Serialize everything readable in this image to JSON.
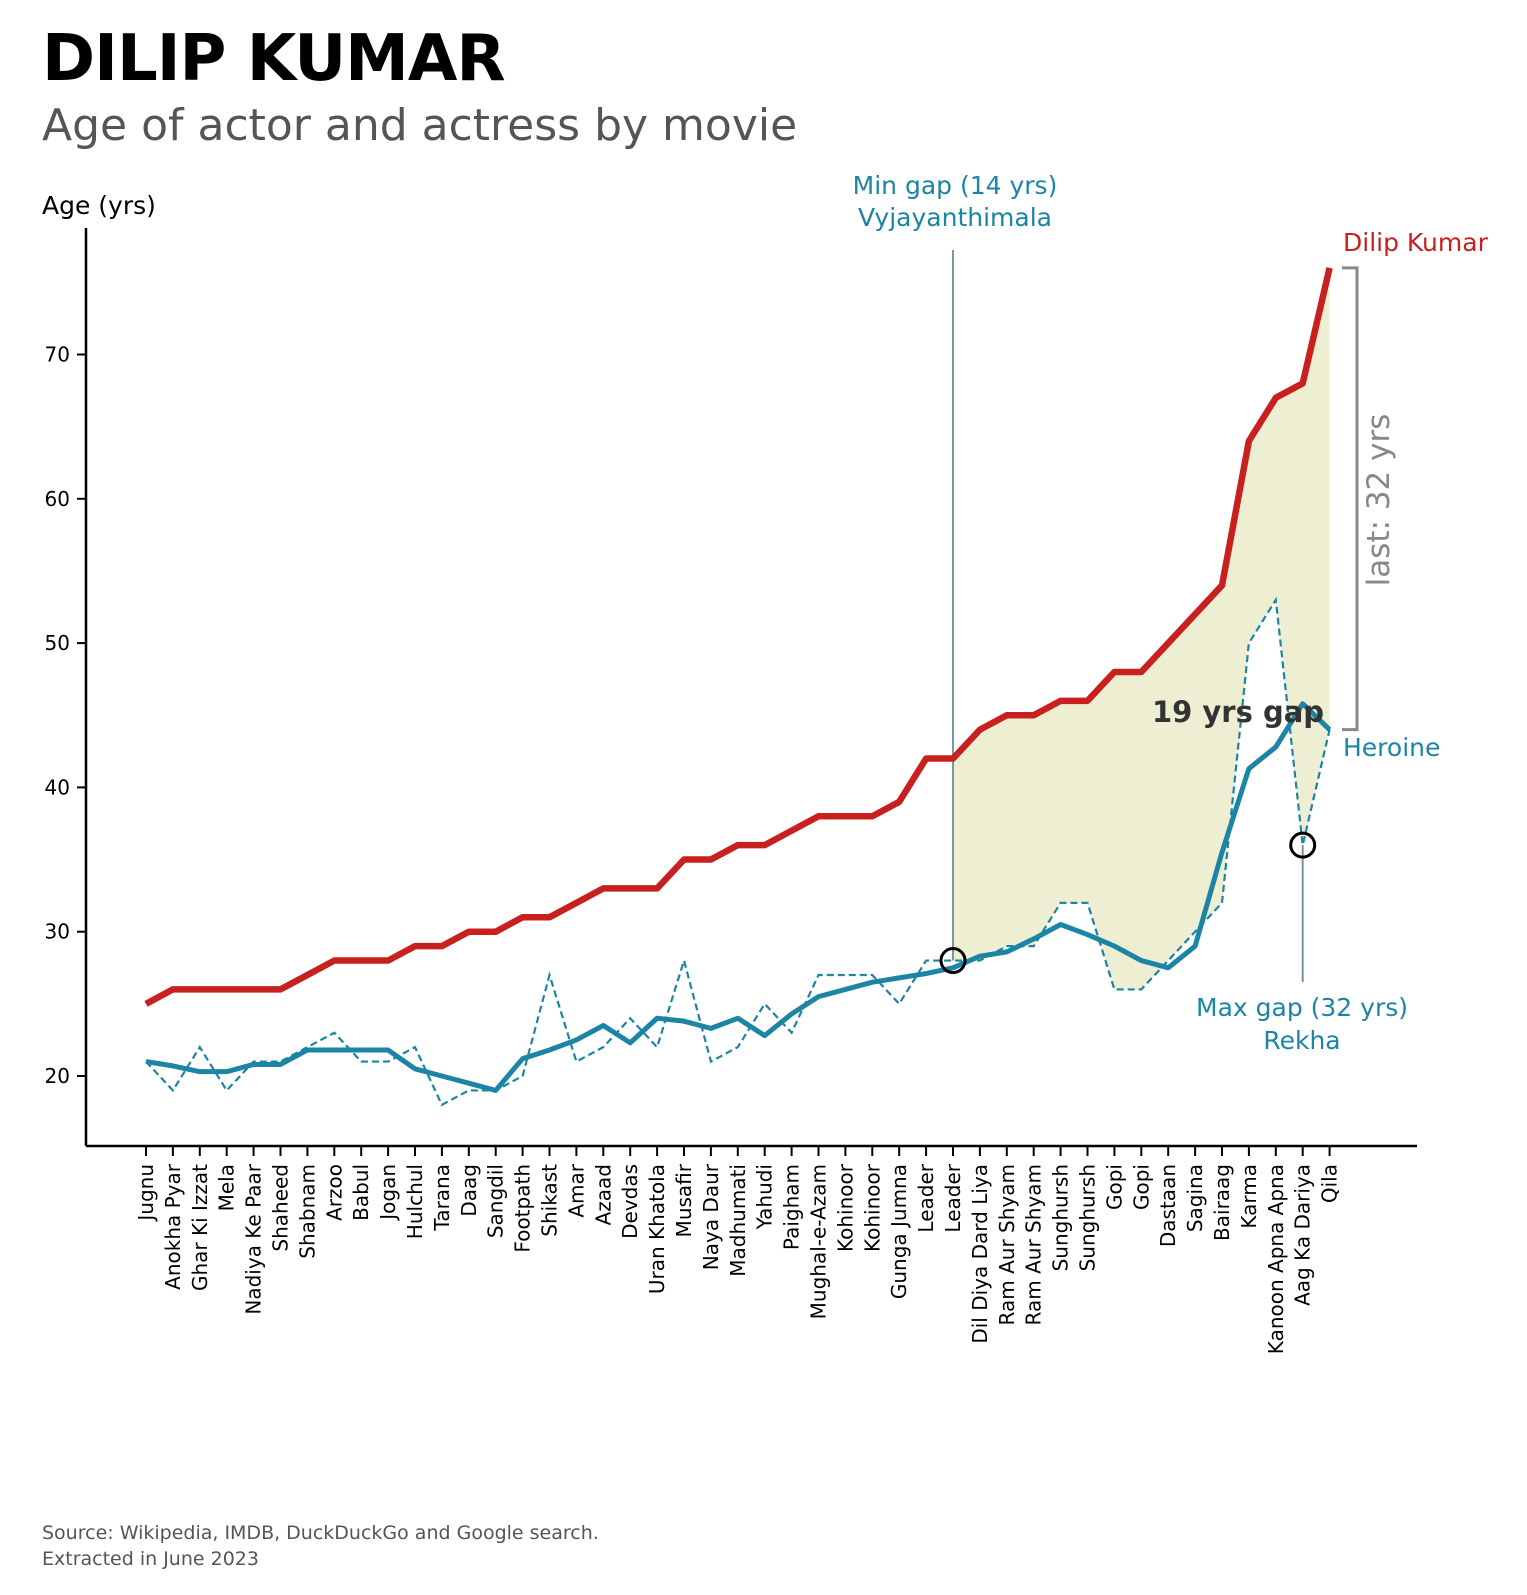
{
  "header": {
    "title": "DILIP KUMAR",
    "subtitle": "Age of actor and actress by movie"
  },
  "footer": {
    "source_line1": "Source: Wikipedia, IMDB, DuckDuckGo and Google search.",
    "source_line2": "Extracted in June 2023"
  },
  "colors": {
    "actor": "#c8201e",
    "heroine": "#1c84a4",
    "gap_fill": "#eeefd2",
    "annotation_line": "#6f8a96",
    "bracket": "#888888",
    "marker": "#000000"
  },
  "annotations": {
    "min_gap_line1": "Min gap (14 yrs)",
    "min_gap_line2": "Vyjayanthimala",
    "max_gap_line1": "Max gap (32 yrs)",
    "max_gap_line2": "Rekha",
    "last_gap": "last: 32 yrs",
    "gap_label": "19 yrs gap",
    "actor_label": "Dilip Kumar",
    "heroine_label": "Heroine"
  },
  "chart_data": {
    "type": "line",
    "ylabel": "Age (yrs)",
    "ylim": [
      15,
      78
    ],
    "yticks": [
      20,
      30,
      40,
      50,
      60,
      70
    ],
    "categories": [
      "Jugnu",
      "Anokha Pyar",
      "Ghar Ki Izzat",
      "Mela",
      "Nadiya Ke Paar",
      "Shaheed",
      "Shabnam",
      "Arzoo",
      "Babul",
      "Jogan",
      "Hulchul",
      "Tarana",
      "Daag",
      "Sangdil",
      "Footpath",
      "Shikast",
      "Amar",
      "Azaad",
      "Devdas",
      "Uran Khatola",
      "Musafir",
      "Naya Daur",
      "Madhumati",
      "Yahudi",
      "Paigham",
      "Mughal-e-Azam",
      "Kohinoor",
      "Kohinoor",
      "Gunga Jumna",
      "Leader",
      "Leader",
      "Dil Diya Dard Liya",
      "Ram Aur Shyam",
      "Ram Aur Shyam",
      "Sunghursh",
      "Sunghursh",
      "Gopi",
      "Gopi",
      "Dastaan",
      "Sagina",
      "Bairaag",
      "Karma",
      "Kanoon Apna Apna",
      "Aag Ka Dariya",
      "Qila"
    ],
    "series": [
      {
        "name": "Dilip Kumar",
        "style": "thick solid",
        "values": [
          25,
          26,
          26,
          26,
          26,
          26,
          27,
          28,
          28,
          28,
          29,
          29,
          30,
          30,
          31,
          31,
          32,
          33,
          33,
          33,
          35,
          35,
          36,
          36,
          37,
          38,
          38,
          38,
          39,
          42,
          42,
          44,
          45,
          45,
          46,
          46,
          48,
          48,
          50,
          52,
          54,
          64,
          67,
          68,
          76
        ]
      },
      {
        "name": "Heroine",
        "style": "dashed",
        "values": [
          21,
          19,
          22,
          19,
          21,
          21,
          22,
          23,
          21,
          21,
          22,
          18,
          19,
          19,
          20,
          27,
          21,
          22,
          24,
          22,
          28,
          21,
          22,
          25,
          23,
          27,
          27,
          27,
          25,
          28,
          28,
          28,
          29,
          29,
          32,
          32,
          26,
          26,
          28,
          30,
          32,
          50,
          53,
          36,
          44
        ]
      },
      {
        "name": "Heroine (trend)",
        "style": "solid smoothed",
        "values": [
          21,
          20.7,
          20.3,
          20.3,
          20.8,
          20.8,
          21.8,
          21.8,
          21.8,
          21.8,
          20.5,
          20,
          19.5,
          19,
          21.2,
          21.8,
          22.5,
          23.5,
          22.3,
          24,
          23.8,
          23.3,
          24,
          22.8,
          24.3,
          25.5,
          26,
          26.5,
          26.8,
          27.1,
          27.5,
          28.3,
          28.6,
          29.5,
          30.5,
          29.8,
          29,
          28,
          27.5,
          29,
          35.5,
          41.3,
          42.8,
          45.8,
          44
        ]
      }
    ],
    "highlights": {
      "min_gap_index": 30,
      "max_gap_index": 43,
      "shaded_range": [
        30,
        44
      ]
    }
  }
}
